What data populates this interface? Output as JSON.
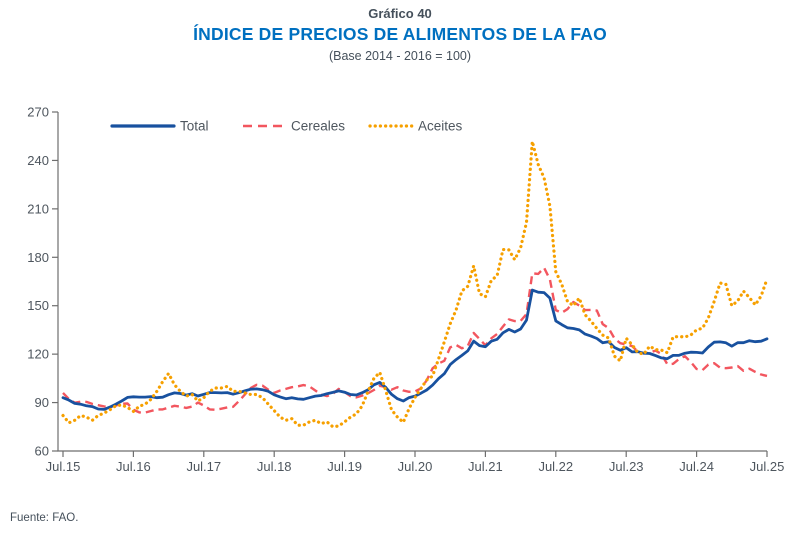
{
  "header": {
    "chart_number": "Gráfico 40",
    "title": "ÍNDICE DE PRECIOS DE ALIMENTOS DE LA FAO",
    "subtitle": "(Base 2014 - 2016 = 100)"
  },
  "footer": {
    "source": "Fuente: FAO."
  },
  "colors": {
    "title_blue": "#0070C0",
    "heading_slate": "#45505B",
    "axis_text": "#4E565E",
    "axis_line": "#6E6E6E",
    "total": "#18519F",
    "cereales": "#F2565F",
    "aceites": "#F6A000"
  },
  "chart_data": {
    "type": "line",
    "title": "ÍNDICE DE PRECIOS DE ALIMENTOS DE LA FAO",
    "subtitle": "(Base 2014 - 2016 = 100)",
    "x_frequency": "monthly",
    "x_start_label": "Jul.15",
    "x_end_label": "Jul.25",
    "x_tick_labels": [
      "Jul.15",
      "Jul.16",
      "Jul.17",
      "Jul.18",
      "Jul.19",
      "Jul.20",
      "Jul.21",
      "Jul.22",
      "Jul.23",
      "Jul.24",
      "Jul.25"
    ],
    "x_tick_positions": [
      0,
      12,
      24,
      36,
      48,
      60,
      72,
      84,
      96,
      108,
      120
    ],
    "ylim": [
      60,
      270
    ],
    "y_ticks": [
      60,
      90,
      120,
      150,
      180,
      210,
      240,
      270
    ],
    "grid": false,
    "legend_position": "top-left-inside",
    "series": [
      {
        "name": "Total",
        "color_key": "total",
        "style": "solid",
        "values": [
          93,
          91.5,
          89.5,
          89,
          88,
          87.5,
          86,
          85.8,
          87.2,
          89,
          91,
          93.2,
          93.6,
          93.4,
          93.4,
          93.7,
          93,
          93.3,
          94.9,
          96,
          95.6,
          94.6,
          95.5,
          94.1,
          95.1,
          96.2,
          96.2,
          96,
          96.2,
          95.2,
          96.1,
          97.2,
          98.3,
          98.5,
          98,
          97,
          94.8,
          93.5,
          92.4,
          93,
          92.3,
          92,
          93,
          94,
          94.4,
          95.5,
          96.3,
          97.2,
          96.4,
          95,
          94.7,
          96.1,
          98,
          101,
          102.5,
          99.4,
          95.1,
          92.4,
          91,
          93.1,
          94,
          95.8,
          97.8,
          100.8,
          104.8,
          107.9,
          113.5,
          116.6,
          119.2,
          122.1,
          128.1,
          125.3,
          124.6,
          128,
          129.2,
          133.2,
          135.3,
          133.7,
          135.6,
          141.1,
          159.7,
          158.4,
          158.1,
          154.7,
          140.6,
          138.3,
          136.3,
          135.9,
          135,
          132.4,
          131.2,
          129.7,
          127,
          127.7,
          124.1,
          122.4,
          124,
          121.4,
          121.5,
          120.6,
          120.4,
          119.1,
          117.7,
          117.2,
          119.2,
          119.3,
          120.6,
          121.2,
          121.1,
          120.7,
          124.4,
          127.4,
          127.6,
          127,
          124.9,
          127.1,
          127.1,
          128.3,
          127.7,
          128,
          129.5
        ]
      },
      {
        "name": "Cereales",
        "color_key": "cereales",
        "style": "dashed",
        "values": [
          96,
          92.2,
          89.9,
          90.5,
          90.4,
          89.2,
          88.4,
          87.6,
          87.2,
          88.1,
          89.3,
          89.4,
          85.6,
          83.9,
          83.8,
          84.8,
          85.8,
          85.8,
          86.9,
          88,
          87.5,
          86.7,
          87.5,
          90,
          88.2,
          85.8,
          85.5,
          86.2,
          87,
          87.4,
          91,
          95,
          99,
          101,
          100.5,
          98,
          96,
          97.5,
          98.5,
          99.5,
          100,
          100.8,
          100,
          97.5,
          95,
          94,
          95.5,
          98.5,
          96.5,
          94,
          93.2,
          94.3,
          95.8,
          97.8,
          100.4,
          99.6,
          98,
          99.5,
          97.5,
          96.7,
          96.9,
          98.8,
          103.8,
          111.2,
          114.2,
          115.9,
          124.2,
          125.7,
          123.6,
          125.1,
          133.1,
          129.4,
          125.5,
          129.8,
          132.5,
          137.1,
          141.5,
          140.5,
          140.6,
          144.8,
          170.1,
          169.7,
          173.5,
          166.3,
          147.3,
          145.6,
          147.9,
          152.3,
          150.1,
          147.3,
          147.4,
          147,
          138.6,
          136.1,
          129.7,
          126.8,
          125.9,
          125,
          121.5,
          120.4,
          121,
          122.2,
          120.1,
          113.8,
          114,
          116.9,
          118.7,
          115.2,
          110.8,
          110.1,
          113.5,
          114.4,
          111.6,
          111.3,
          111.7,
          112.6,
          109.7,
          111,
          109,
          107.4,
          106.5
        ]
      },
      {
        "name": "Aceites",
        "color_key": "aceites",
        "style": "dotted",
        "values": [
          82,
          77.5,
          79,
          82,
          81,
          79,
          82,
          83.5,
          85.5,
          88,
          88.5,
          87,
          84.5,
          87.7,
          89,
          92,
          97,
          103,
          108,
          101,
          97,
          94,
          95,
          91,
          93,
          97,
          99,
          99,
          100,
          97,
          97,
          96,
          95,
          95,
          93,
          89,
          85,
          81,
          79,
          80,
          76,
          76,
          78,
          79,
          77,
          78,
          75,
          75.5,
          78,
          81,
          83,
          88,
          97,
          105,
          108.7,
          97.5,
          85.5,
          81,
          77.8,
          86.3,
          93.2,
          98.7,
          104,
          106.4,
          116.9,
          127.6,
          138.8,
          147.4,
          159.2,
          162,
          174.7,
          157.5,
          155.5,
          165.7,
          168.6,
          184.8,
          184.6,
          178.5,
          185.9,
          201.7,
          251.8,
          237.5,
          229.2,
          211.8,
          171.1,
          163.3,
          152.6,
          150.1,
          154.7,
          144.4,
          140.4,
          135.9,
          131.8,
          130,
          118.7,
          115.8,
          129.8,
          125.8,
          120.9,
          120,
          124.9,
          122.8,
          122.5,
          120.9,
          130.6,
          130.9,
          130.6,
          131.8,
          135,
          136.1,
          142.4,
          152.7,
          164.1,
          163.2,
          150,
          153,
          159,
          155,
          150.5,
          156,
          166.5
        ]
      }
    ]
  }
}
